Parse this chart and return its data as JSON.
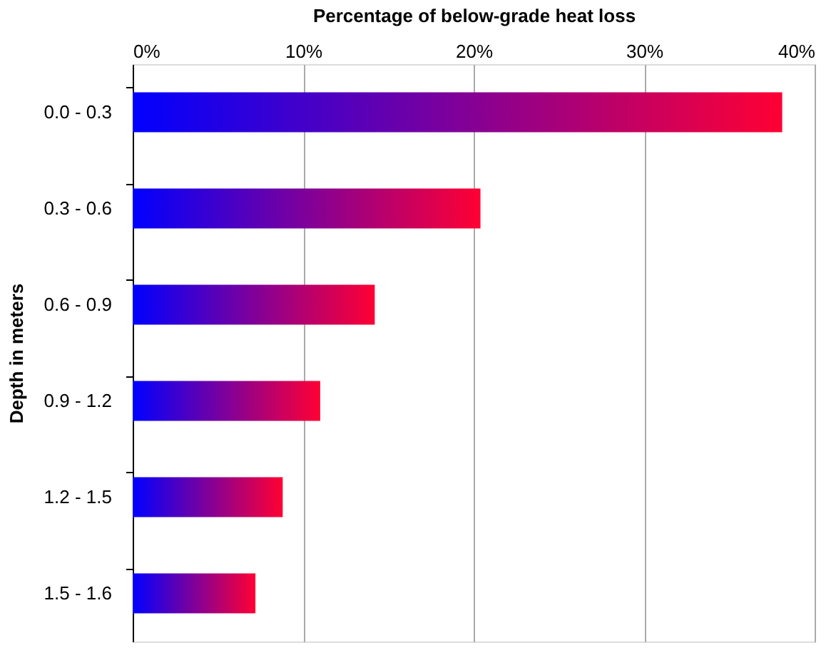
{
  "chart_data": {
    "type": "bar",
    "orientation": "horizontal",
    "xlabel": "Percentage of below-grade heat loss",
    "ylabel": "Depth in meters",
    "categories": [
      "0.0 - 0.3",
      "0.3 - 0.6",
      "0.6 - 0.9",
      "0.9 - 1.2",
      "1.2 - 1.5",
      "1.5 - 1.6"
    ],
    "series": [
      {
        "color": "#ff0033",
        "values": [
          38.1,
          20.4,
          14.2,
          11.0,
          8.8,
          7.2
        ]
      }
    ],
    "xlim": [
      0,
      40
    ],
    "xticks": [
      {
        "value": 0,
        "label": "0%"
      },
      {
        "value": 10,
        "label": "10%"
      },
      {
        "value": 20,
        "label": "20%"
      },
      {
        "value": 30,
        "label": "30%"
      },
      {
        "value": 40,
        "label": "40%"
      }
    ],
    "grid": "x"
  }
}
